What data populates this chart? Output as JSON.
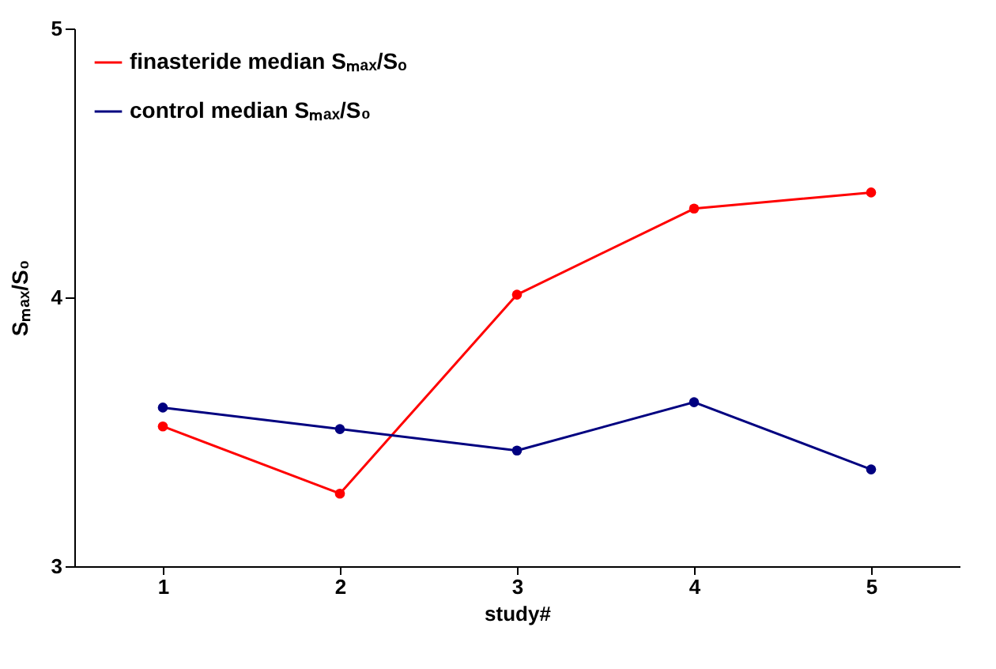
{
  "chart_data": {
    "type": "line",
    "xlabel": "study#",
    "ylabel": "Sₘₐₓ/S₀",
    "categories": [
      "1",
      "2",
      "3",
      "4",
      "5"
    ],
    "series": [
      {
        "name": "finasteride median Sₘₐₓ/Sₒ",
        "color": "#ff0000",
        "values": [
          3.52,
          3.27,
          4.01,
          4.33,
          4.39
        ]
      },
      {
        "name": "control median Sₘₐₓ/S₀",
        "color": "#000080",
        "values": [
          3.59,
          3.51,
          3.43,
          3.61,
          3.36
        ]
      }
    ],
    "ylim": [
      3,
      5
    ],
    "yticks": [
      3,
      4,
      5
    ],
    "grid": false,
    "legend": "top left",
    "marker": "circle",
    "line_style": "solid"
  }
}
